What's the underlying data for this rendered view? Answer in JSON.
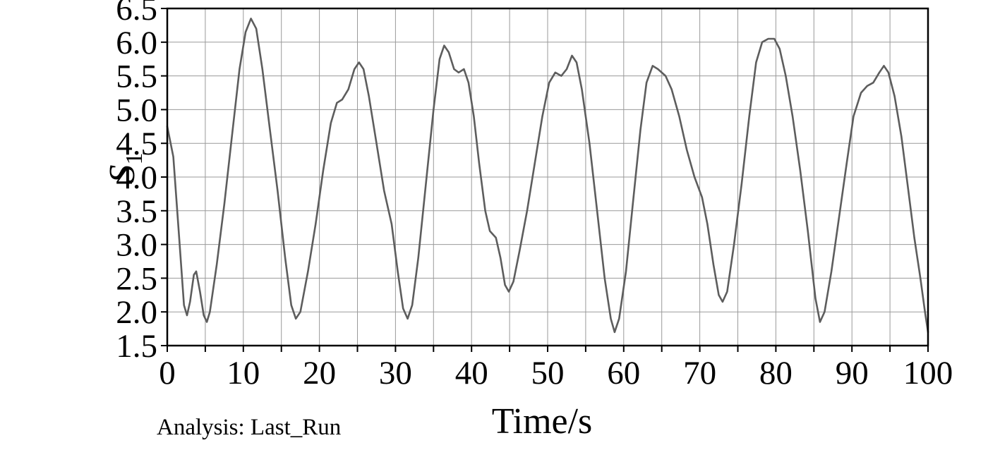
{
  "labels": {
    "y_axis_main": "S",
    "y_axis_sub": "1",
    "x_axis": "Time/s",
    "caption": "Analysis: Last_Run"
  },
  "chart_data": {
    "type": "line",
    "title": "",
    "xlabel": "Time/s",
    "ylabel": "S_1",
    "caption": "Analysis: Last_Run",
    "xlim": [
      0,
      100
    ],
    "ylim": [
      1.5,
      6.5
    ],
    "x_major_tick_step": 10,
    "x_minor_grid_step": 5,
    "y_tick_step": 0.5,
    "grid": true,
    "legend": "none",
    "line_color": "#5d5d5d",
    "grid_color": "#9a9a9a",
    "axis_color": "#000000",
    "series": [
      {
        "name": "S1",
        "x": [
          0,
          0.8,
          1.5,
          2.2,
          2.6,
          3.0,
          3.5,
          3.8,
          4.3,
          4.8,
          5.2,
          5.6,
          6.5,
          7.5,
          8.5,
          9.5,
          10.3,
          11,
          11.7,
          12.5,
          13.5,
          14.5,
          15.5,
          16.3,
          16.9,
          17.5,
          18.5,
          19.5,
          20.5,
          21.5,
          22.3,
          23,
          23.8,
          24.6,
          25.2,
          25.8,
          26.5,
          27.5,
          28.5,
          29.5,
          30.3,
          31,
          31.6,
          32.2,
          33,
          34,
          35,
          35.8,
          36.4,
          37,
          37.7,
          38.3,
          39,
          39.6,
          40.3,
          41,
          41.8,
          42.4,
          43.2,
          43.8,
          44.4,
          44.9,
          45.5,
          46.3,
          47.3,
          48.3,
          49.3,
          50.2,
          51,
          51.8,
          52.5,
          53.2,
          53.8,
          54.5,
          55.5,
          56.5,
          57.5,
          58.3,
          58.8,
          59.4,
          60.3,
          61.2,
          62.2,
          63,
          63.8,
          64.5,
          65.5,
          66.3,
          67.3,
          68.3,
          69.3,
          70.3,
          71,
          71.8,
          72.5,
          73,
          73.6,
          74.5,
          75.5,
          76.5,
          77.4,
          78.2,
          79,
          79.8,
          80.5,
          81.3,
          82.2,
          83.2,
          84.2,
          85.2,
          85.8,
          86.4,
          87.3,
          88.3,
          89.3,
          90.2,
          91.2,
          92,
          92.8,
          93.6,
          94.2,
          94.8,
          95.6,
          96.5,
          97.3,
          98.2,
          99,
          99.6,
          100
        ],
        "y": [
          4.75,
          4.3,
          3.2,
          2.1,
          1.95,
          2.15,
          2.55,
          2.6,
          2.3,
          1.95,
          1.85,
          2.0,
          2.7,
          3.6,
          4.6,
          5.6,
          6.15,
          6.35,
          6.2,
          5.6,
          4.7,
          3.8,
          2.8,
          2.1,
          1.9,
          2.0,
          2.6,
          3.3,
          4.1,
          4.8,
          5.1,
          5.15,
          5.3,
          5.6,
          5.7,
          5.6,
          5.2,
          4.5,
          3.8,
          3.3,
          2.6,
          2.05,
          1.9,
          2.1,
          2.8,
          3.9,
          5.0,
          5.75,
          5.95,
          5.85,
          5.6,
          5.55,
          5.6,
          5.4,
          4.9,
          4.2,
          3.5,
          3.2,
          3.1,
          2.8,
          2.4,
          2.3,
          2.45,
          2.9,
          3.5,
          4.2,
          4.9,
          5.4,
          5.55,
          5.5,
          5.6,
          5.8,
          5.7,
          5.3,
          4.5,
          3.5,
          2.5,
          1.9,
          1.7,
          1.9,
          2.6,
          3.6,
          4.7,
          5.4,
          5.65,
          5.6,
          5.5,
          5.3,
          4.9,
          4.4,
          4.0,
          3.7,
          3.3,
          2.7,
          2.25,
          2.15,
          2.3,
          3.0,
          3.9,
          4.9,
          5.7,
          6.0,
          6.05,
          6.05,
          5.9,
          5.5,
          4.9,
          4.1,
          3.2,
          2.2,
          1.85,
          2.0,
          2.6,
          3.4,
          4.2,
          4.9,
          5.25,
          5.35,
          5.4,
          5.55,
          5.65,
          5.55,
          5.2,
          4.6,
          3.9,
          3.1,
          2.5,
          2.0,
          1.7
        ]
      }
    ]
  }
}
